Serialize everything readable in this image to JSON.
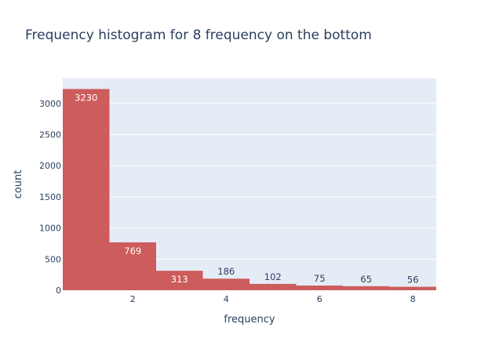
{
  "chart_data": {
    "type": "bar",
    "title": "Frequency histogram for 8 frequency on the bottom",
    "xlabel": "frequency",
    "ylabel": "count",
    "x_ticks": [
      "2",
      "4",
      "6",
      "8"
    ],
    "y_ticks": [
      "0",
      "500",
      "1000",
      "1500",
      "2000",
      "2500",
      "3000"
    ],
    "bins": [
      {
        "x": 1,
        "label": "3230",
        "value": 3230
      },
      {
        "x": 2,
        "label": "769",
        "value": 769
      },
      {
        "x": 3,
        "label": "313",
        "value": 313
      },
      {
        "x": 4,
        "label": "186",
        "value": 186
      },
      {
        "x": 5,
        "label": "102",
        "value": 102
      },
      {
        "x": 6,
        "label": "75",
        "value": 75
      },
      {
        "x": 7,
        "label": "65",
        "value": 65
      },
      {
        "x": 8,
        "label": "56",
        "value": 56
      }
    ],
    "xlim": [
      0.5,
      8.5
    ],
    "ylim": [
      0,
      3400
    ],
    "grid": true,
    "colors": {
      "bar": "#cd5c5c",
      "plot_bg": "#e5ecf6",
      "grid": "#ffffff",
      "text": "#2a3f5f",
      "label_inside": "#ffffff"
    }
  }
}
